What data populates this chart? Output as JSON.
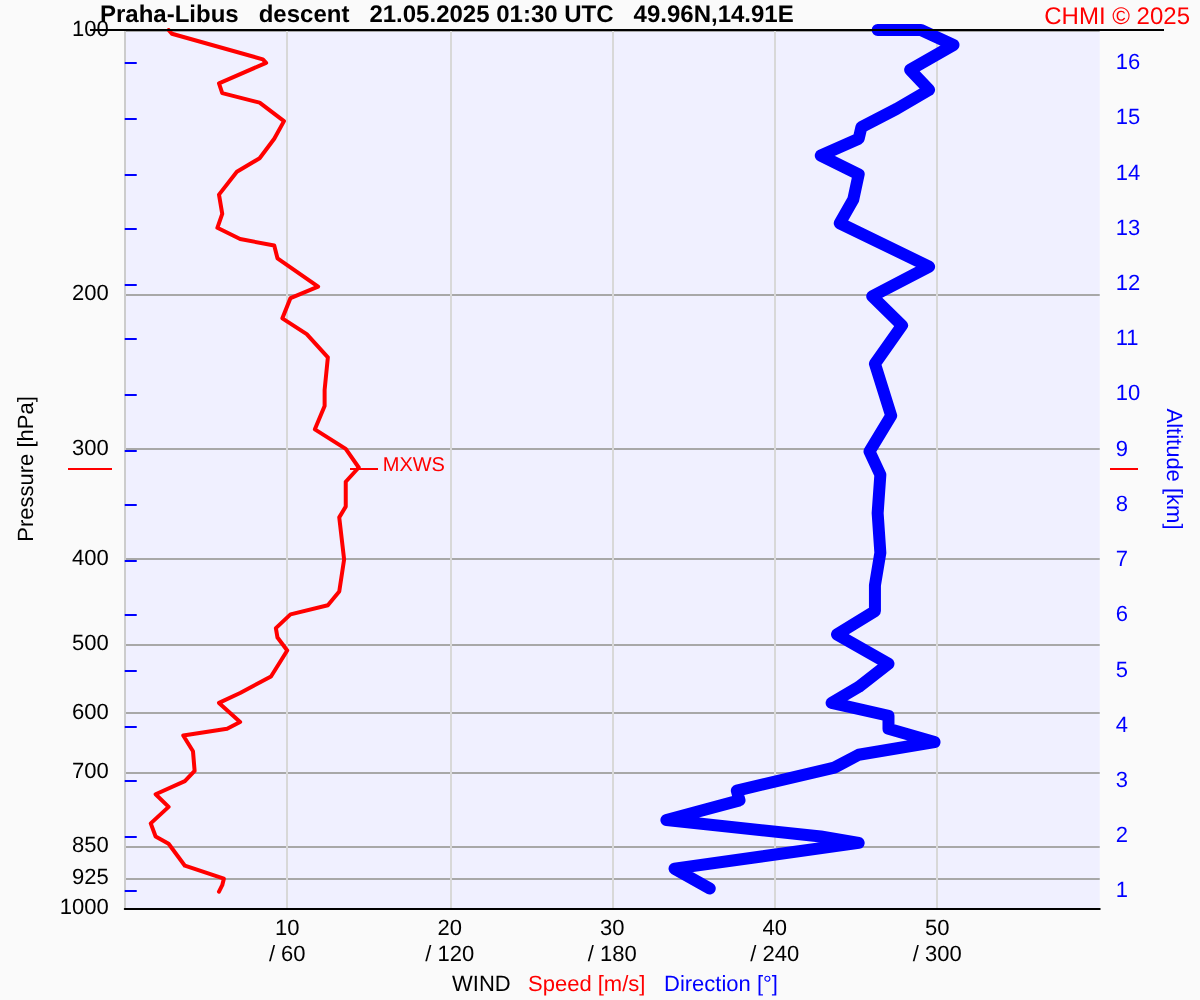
{
  "chart_data": {
    "type": "line",
    "title": "Praha-Libus   descent   21.05.2025 01:30 UTC   49.96N,14.91E",
    "xlabel": "Speed [m/s]",
    "x2label": "Direction [°]",
    "ylabel": "Pressure [hPa]",
    "y2label": "Altitude [km]",
    "annotations": [
      "CHMI © 2025",
      "WIND",
      {
        "text": "MXWS",
        "x": 14.4,
        "y": 315
      }
    ],
    "xlim": [
      0,
      60
    ],
    "xticks": [
      10,
      20,
      30,
      40,
      50
    ],
    "x2lim": [
      0,
      360
    ],
    "x2ticks": [
      {
        "value": 60,
        "label": "/ 60"
      },
      {
        "value": 120,
        "label": "/ 120"
      },
      {
        "value": 180,
        "label": "/ 180"
      },
      {
        "value": 240,
        "label": "/ 240"
      },
      {
        "value": 300,
        "label": "/ 300"
      }
    ],
    "ylim": [
      1000,
      100
    ],
    "yticks": [
      100,
      200,
      300,
      400,
      500,
      600,
      700,
      850,
      925,
      1000
    ],
    "log": "y",
    "y2lim": [
      0.7,
      16.6
    ],
    "y2ticks": [
      1,
      2,
      3,
      4,
      5,
      6,
      7,
      8,
      9,
      10,
      11,
      12,
      13,
      14,
      15,
      16
    ],
    "grid": true,
    "series": [
      {
        "color": "#ff0000",
        "x": [
          2.7,
          2.9,
          8.5,
          8.7,
          5.8,
          6.0,
          8.3,
          9.8,
          9.2,
          8.3,
          6.9,
          5.8,
          6.0,
          5.7,
          7.1,
          9.2,
          9.4,
          11.9,
          10.2,
          9.7,
          11.2,
          12.5,
          12.3,
          12.3,
          11.7,
          13.6,
          14.4,
          13.6,
          13.6,
          13.2,
          13.5,
          13.2,
          12.5,
          10.2,
          9.3,
          9.4,
          10.0,
          9.0,
          7.1,
          5.8,
          7.1,
          6.3,
          3.6,
          4.2,
          4.3,
          3.7,
          1.9,
          2.7,
          1.6,
          1.9,
          2.7,
          3.7,
          6.1,
          6.0,
          5.8
        ],
        "values": [
          100,
          101,
          108,
          109,
          115,
          118,
          121,
          127,
          133,
          140,
          145,
          154,
          162,
          168,
          173,
          176,
          182,
          196,
          202,
          213,
          222,
          236,
          257,
          268,
          285,
          300,
          315,
          327,
          349,
          359,
          401,
          436,
          452,
          463,
          480,
          492,
          509,
          545,
          569,
          584,
          614,
          625,
          636,
          663,
          698,
          717,
          742,
          767,
          801,
          829,
          845,
          895,
          926,
          942,
          958
        ]
      },
      {
        "color": "#0000ff",
        "axis": "x2",
        "x": [
          278,
          294,
          306,
          290,
          297,
          285,
          272,
          271,
          257,
          271,
          269,
          264,
          297,
          276,
          287,
          277,
          283,
          275,
          279,
          278,
          279,
          277,
          277,
          263,
          282,
          271,
          261,
          282,
          282,
          299,
          271,
          262,
          226,
          227,
          200,
          257,
          271,
          203,
          216
        ],
        "values": [
          100,
          100,
          104,
          111,
          117,
          123,
          129,
          133,
          139,
          146,
          156,
          166,
          186,
          201,
          217,
          240,
          275,
          302,
          321,
          355,
          394,
          429,
          459,
          488,
          527,
          560,
          584,
          604,
          625,
          647,
          669,
          692,
          735,
          754,
          794,
          829,
          843,
          902,
          950
        ]
      }
    ]
  }
}
